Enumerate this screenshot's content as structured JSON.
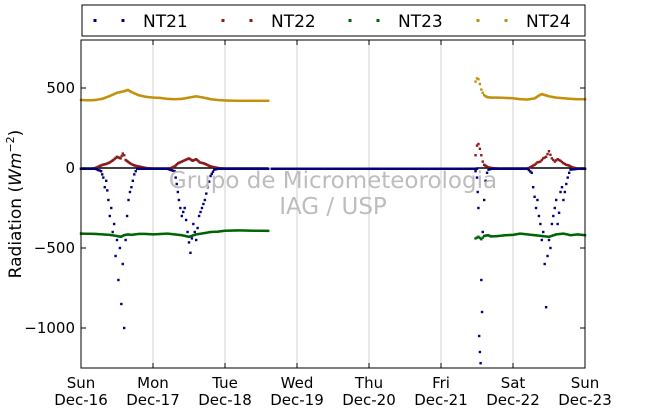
{
  "chart_data": {
    "type": "scatter",
    "title": "",
    "xlabel": "",
    "ylabel": "Radiation (",
    "ylabel_unit_base": "Wm",
    "ylabel_unit_exp": "−2",
    "ylabel_close": ")",
    "ylim": [
      -1250,
      800
    ],
    "xlim": [
      0,
      7
    ],
    "x_unit": "days from Sun Dec-16 00:00",
    "yticks": [
      500,
      0,
      -500,
      -1000
    ],
    "ytick_labels": [
      "500",
      "0",
      "−500",
      "−1000"
    ],
    "xticks": [
      {
        "day": "Sun",
        "date": "Dec-16"
      },
      {
        "day": "Mon",
        "date": "Dec-17"
      },
      {
        "day": "Tue",
        "date": "Dec-18"
      },
      {
        "day": "Wed",
        "date": "Dec-19"
      },
      {
        "day": "Thu",
        "date": "Dec-20"
      },
      {
        "day": "Fri",
        "date": "Dec-21"
      },
      {
        "day": "Sat",
        "date": "Dec-22"
      },
      {
        "day": "Sun",
        "date": "Dec-23"
      }
    ],
    "grid": "vertical",
    "legend_position": "top",
    "series": [
      {
        "name": "NT21",
        "color": "#00007f",
        "segments": [
          {
            "x": [
              0.0,
              0.2,
              0.28,
              0.31,
              0.33,
              0.35,
              0.38,
              0.4,
              0.42,
              0.44,
              0.46,
              0.48,
              0.5,
              0.52,
              0.54,
              0.56,
              0.58,
              0.6,
              0.62,
              0.64,
              0.66,
              0.68,
              0.7,
              0.72,
              0.74,
              0.76,
              0.78,
              0.82,
              0.9,
              1.0
            ],
            "y": [
              -5,
              -5,
              -20,
              -60,
              -120,
              -80,
              -200,
              -300,
              -250,
              -400,
              -350,
              -550,
              -450,
              -700,
              -500,
              -850,
              -600,
              -1000,
              -450,
              -300,
              -200,
              -150,
              -120,
              -80,
              -40,
              -20,
              -5,
              -5,
              -5,
              -5
            ]
          },
          {
            "x": [
              1.0,
              1.2,
              1.3,
              1.33,
              1.36,
              1.4,
              1.44,
              1.48,
              1.52,
              1.56,
              1.6,
              1.64,
              1.68,
              1.72,
              1.76,
              1.8,
              1.85,
              1.9,
              2.0,
              2.6
            ],
            "y": [
              -5,
              -5,
              -20,
              -100,
              -200,
              -300,
              -250,
              -400,
              -530,
              -350,
              -450,
              -300,
              -250,
              -200,
              -120,
              -50,
              -10,
              -5,
              -5,
              -5
            ]
          },
          {
            "x": [
              2.65,
              5.5
            ],
            "y": [
              -5,
              -5
            ]
          },
          {
            "x": [
              5.48,
              5.5,
              5.51,
              5.52,
              5.53,
              5.54,
              5.55,
              5.56,
              5.57,
              5.58,
              5.6,
              5.62,
              5.64,
              5.66,
              5.7,
              5.8,
              5.9,
              6.0,
              6.2
            ],
            "y": [
              -20,
              -60,
              -150,
              -250,
              -1050,
              -1150,
              -1220,
              -700,
              -900,
              -400,
              -200,
              -80,
              -30,
              -10,
              -5,
              -5,
              -5,
              -5,
              -5
            ]
          },
          {
            "x": [
              6.2,
              6.26,
              6.28,
              6.3,
              6.32,
              6.34,
              6.36,
              6.38,
              6.4,
              6.42,
              6.44,
              6.46,
              6.48,
              6.5,
              6.52,
              6.54,
              6.56,
              6.58,
              6.6,
              6.62,
              6.64,
              6.66,
              6.68,
              6.7,
              6.72,
              6.74,
              6.76,
              6.78,
              6.8,
              6.9,
              7.0
            ],
            "y": [
              -5,
              -30,
              -120,
              -180,
              -250,
              -200,
              -300,
              -350,
              -450,
              -400,
              -600,
              -870,
              -550,
              -450,
              -500,
              -350,
              -300,
              -250,
              -200,
              -350,
              -280,
              -150,
              -120,
              -200,
              -150,
              -100,
              -60,
              -30,
              -10,
              -5,
              -5
            ]
          }
        ]
      },
      {
        "name": "NT22",
        "color": "#8b1a1a",
        "segments": [
          {
            "x": [
              0.0,
              0.15,
              0.2,
              0.25,
              0.3,
              0.35,
              0.4,
              0.45,
              0.5,
              0.55,
              0.58,
              0.6,
              0.62,
              0.65,
              0.68,
              0.72,
              0.75,
              0.8,
              0.85,
              0.9,
              1.0,
              1.2,
              1.25,
              1.3,
              1.35,
              1.4,
              1.45,
              1.5,
              1.55,
              1.6,
              1.65,
              1.7,
              1.75,
              1.8,
              1.85,
              1.9,
              2.0,
              2.6
            ],
            "y": [
              -5,
              -5,
              0,
              10,
              20,
              25,
              35,
              50,
              70,
              60,
              90,
              80,
              50,
              40,
              30,
              20,
              15,
              10,
              5,
              0,
              -5,
              -5,
              0,
              10,
              30,
              40,
              50,
              60,
              45,
              55,
              35,
              30,
              20,
              10,
              5,
              0,
              -5,
              -5
            ]
          },
          {
            "x": [
              2.65,
              5.45
            ],
            "y": [
              -5,
              -5
            ]
          },
          {
            "x": [
              5.48,
              5.5,
              5.52,
              5.54,
              5.56,
              5.58,
              5.6,
              5.65,
              5.7,
              5.8,
              5.9,
              6.0,
              6.2,
              6.26,
              6.3,
              6.34,
              6.38,
              6.42,
              6.46,
              6.5,
              6.54,
              6.58,
              6.62,
              6.66,
              6.7,
              6.74,
              6.78,
              6.82,
              6.9,
              7.0
            ],
            "y": [
              80,
              140,
              150,
              120,
              80,
              40,
              20,
              5,
              0,
              -5,
              -5,
              -5,
              -5,
              10,
              20,
              35,
              40,
              60,
              70,
              105,
              60,
              40,
              55,
              45,
              30,
              20,
              15,
              5,
              -5,
              -5
            ]
          }
        ]
      },
      {
        "name": "NT23",
        "color": "#006400",
        "segments": [
          {
            "x": [
              0.0,
              0.2,
              0.4,
              0.5,
              0.55,
              0.6,
              0.65,
              0.7,
              0.8,
              0.9,
              1.0,
              1.2,
              1.4,
              1.5,
              1.6,
              1.7,
              1.8,
              1.9,
              2.0,
              2.2,
              2.4,
              2.6
            ],
            "y": [
              -410,
              -412,
              -418,
              -425,
              -430,
              -420,
              -415,
              -418,
              -412,
              -412,
              -415,
              -410,
              -420,
              -430,
              -415,
              -408,
              -400,
              -398,
              -392,
              -390,
              -392,
              -393
            ]
          },
          {
            "x": [
              5.48,
              5.52,
              5.56,
              5.6,
              5.65,
              5.7,
              5.8,
              5.9,
              6.0,
              6.1,
              6.2,
              6.3,
              6.4,
              6.5,
              6.6,
              6.7,
              6.8,
              6.9,
              7.0
            ],
            "y": [
              -440,
              -430,
              -445,
              -425,
              -420,
              -428,
              -425,
              -420,
              -418,
              -410,
              -415,
              -420,
              -425,
              -430,
              -415,
              -410,
              -420,
              -415,
              -420
            ]
          }
        ]
      },
      {
        "name": "NT24",
        "color": "#c4900b",
        "segments": [
          {
            "x": [
              0.0,
              0.1,
              0.2,
              0.3,
              0.4,
              0.5,
              0.6,
              0.65,
              0.7,
              0.8,
              0.9,
              1.0,
              1.1,
              1.2,
              1.3,
              1.4,
              1.5,
              1.6,
              1.7,
              1.8,
              1.9,
              2.0,
              2.2,
              2.4,
              2.6
            ],
            "y": [
              425,
              423,
              425,
              433,
              450,
              470,
              480,
              488,
              475,
              455,
              445,
              440,
              438,
              432,
              430,
              432,
              440,
              448,
              440,
              430,
              425,
              422,
              420,
              420,
              420
            ]
          },
          {
            "x": [
              5.48,
              5.5,
              5.52,
              5.54,
              5.56,
              5.58,
              5.6,
              5.62,
              5.65,
              5.7,
              5.8,
              5.9,
              6.0,
              6.1,
              6.2,
              6.3,
              6.35,
              6.4,
              6.45,
              6.5,
              6.6,
              6.7,
              6.8,
              6.9,
              7.0
            ],
            "y": [
              540,
              560,
              555,
              525,
              490,
              470,
              455,
              448,
              442,
              440,
              440,
              438,
              436,
              430,
              428,
              435,
              450,
              462,
              455,
              448,
              440,
              436,
              432,
              430,
              430
            ]
          }
        ]
      }
    ],
    "reference_line": {
      "y": 0,
      "segments": [
        [
          0,
          2.6
        ],
        [
          5.48,
          7
        ]
      ],
      "color": "#000000"
    },
    "watermark": [
      "Grupo de Micrometeorologia",
      "IAG / USP"
    ]
  }
}
